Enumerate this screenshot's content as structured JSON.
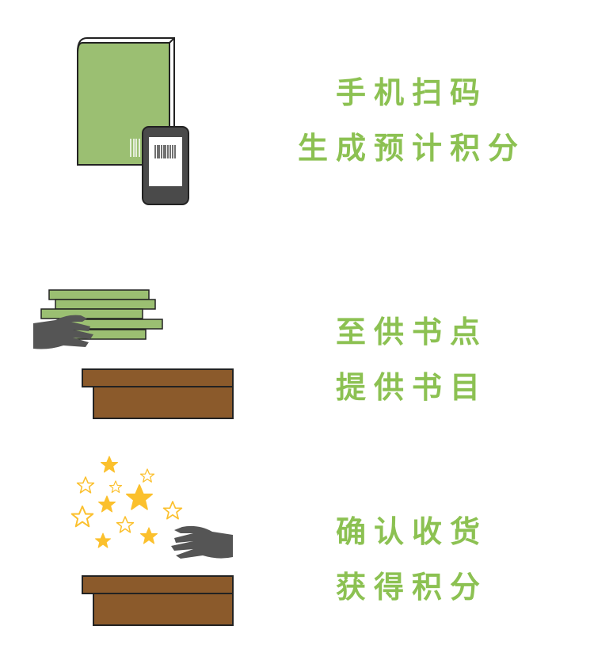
{
  "colors": {
    "accent_green": "#8cc152",
    "book_green": "#9bbf72",
    "wood_brown": "#8b5a2b",
    "hand_gray": "#555555",
    "star_gold": "#fbc02d"
  },
  "steps": [
    {
      "line1": "手机扫码",
      "line2": "生成预计积分",
      "icon": "book-and-phone-scan-icon"
    },
    {
      "line1": "至供书点",
      "line2": "提供书目",
      "icon": "hand-delivering-books-icon"
    },
    {
      "line1": "确认收货",
      "line2": "获得积分",
      "icon": "hand-receiving-stars-icon"
    }
  ]
}
